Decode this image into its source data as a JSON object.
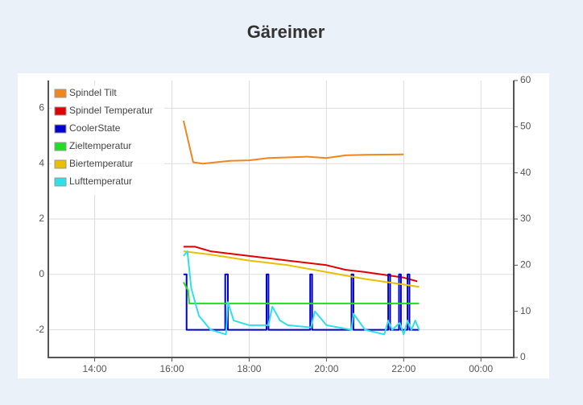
{
  "chart_data": {
    "type": "line",
    "title": "Gäreimer",
    "xlim": [
      12.8,
      24.85
    ],
    "xticks": [
      {
        "value": 14,
        "label": "14:00"
      },
      {
        "value": 16,
        "label": "16:00"
      },
      {
        "value": 18,
        "label": "18:00"
      },
      {
        "value": 20,
        "label": "20:00"
      },
      {
        "value": 22,
        "label": "22:00"
      },
      {
        "value": 24,
        "label": "00:00"
      }
    ],
    "ylim": [
      -3,
      7
    ],
    "yticks": [
      -2,
      0,
      2,
      4,
      6
    ],
    "y2lim": [
      0,
      60
    ],
    "y2ticks": [
      0,
      10,
      20,
      30,
      40,
      50,
      60
    ],
    "grid": true,
    "legend": "upper left",
    "series": [
      {
        "name": "Spindel Tilt",
        "color": "#f0861e",
        "axis": "y",
        "x": [
          16.3,
          16.55,
          16.8,
          17.5,
          18.0,
          18.5,
          19.5,
          20.0,
          20.5,
          21.0,
          22.0
        ],
        "values": [
          5.55,
          4.05,
          4.0,
          4.1,
          4.12,
          4.2,
          4.25,
          4.2,
          4.3,
          4.32,
          4.33
        ]
      },
      {
        "name": "Spindel Temperatur",
        "color": "#e00000",
        "axis": "y2",
        "x": [
          16.3,
          16.6,
          17.0,
          18.0,
          19.0,
          20.0,
          20.5,
          21.0,
          22.0,
          22.35
        ],
        "values": [
          24,
          24,
          23,
          22,
          21,
          20,
          19,
          18.5,
          17.3,
          16.5
        ]
      },
      {
        "name": "CoolerState",
        "color": "#0000cc",
        "axis": "y",
        "x": [
          16.3,
          16.38,
          16.38,
          17.38,
          17.38,
          17.45,
          17.45,
          18.45,
          18.45,
          18.5,
          18.5,
          19.58,
          19.58,
          19.63,
          19.63,
          20.65,
          20.65,
          20.7,
          20.7,
          21.6,
          21.6,
          21.65,
          21.65,
          21.88,
          21.88,
          21.93,
          21.93,
          22.1,
          22.1,
          22.15,
          22.15,
          22.4
        ],
        "values": [
          0,
          0,
          -2,
          -2,
          0,
          0,
          -2,
          -2,
          0,
          0,
          -2,
          -2,
          0,
          0,
          -2,
          -2,
          0,
          0,
          -2,
          -2,
          0,
          0,
          -2,
          -2,
          0,
          0,
          -2,
          -2,
          0,
          0,
          -2,
          -2
        ]
      },
      {
        "name": "Zieltemperatur",
        "color": "#22dd22",
        "axis": "y2",
        "x": [
          16.3,
          16.42,
          16.45,
          22.4
        ],
        "values": [
          16.3,
          14.5,
          11.7,
          11.7
        ]
      },
      {
        "name": "Biertemperatur",
        "color": "#e8c000",
        "axis": "y2",
        "x": [
          16.3,
          17.0,
          18.0,
          19.0,
          20.0,
          21.0,
          22.0,
          22.4
        ],
        "values": [
          23,
          22.3,
          21,
          20,
          18.5,
          17,
          15.8,
          15.3
        ]
      },
      {
        "name": "Lufttemperatur",
        "color": "#30e0e8",
        "axis": "y2",
        "x": [
          16.3,
          16.4,
          16.5,
          16.7,
          17.0,
          17.4,
          17.45,
          17.6,
          18.0,
          18.5,
          18.6,
          18.8,
          19.0,
          19.6,
          19.7,
          20.0,
          20.65,
          20.7,
          21.0,
          21.5,
          21.6,
          21.7,
          21.9,
          22.0,
          22.1,
          22.2,
          22.3,
          22.4
        ],
        "values": [
          22,
          23,
          15,
          9,
          6,
          5,
          12,
          8,
          7,
          7,
          11,
          8,
          7,
          6.5,
          10,
          7,
          6,
          9.5,
          6,
          5,
          8,
          6,
          7.5,
          5,
          8,
          6,
          8,
          6
        ]
      }
    ]
  }
}
